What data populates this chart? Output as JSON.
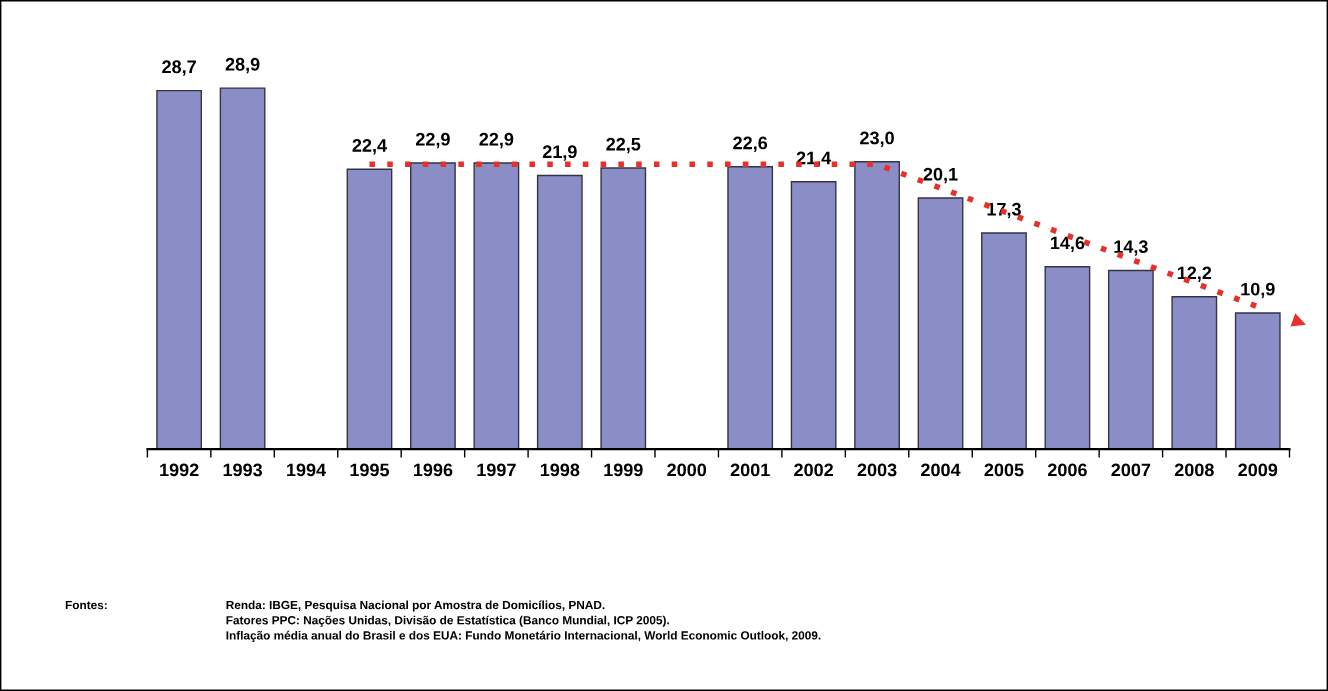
{
  "chart_data": {
    "type": "bar",
    "categories": [
      "1992",
      "1993",
      "1994",
      "1995",
      "1996",
      "1997",
      "1998",
      "1999",
      "2000",
      "2001",
      "2002",
      "2003",
      "2004",
      "2005",
      "2006",
      "2007",
      "2008",
      "2009"
    ],
    "series": [
      {
        "color": "#8b8ec6",
        "values": [
          28.7,
          28.9,
          null,
          22.4,
          22.9,
          22.9,
          21.9,
          22.5,
          null,
          22.6,
          21.4,
          23.0,
          20.1,
          17.3,
          14.6,
          14.3,
          12.2,
          10.9
        ],
        "value_labels": [
          "28,7",
          "28,9",
          null,
          "22,4",
          "22,9",
          "22,9",
          "21,9",
          "22,5",
          null,
          "22,6",
          "21,4",
          "23,0",
          "20,1",
          "17,3",
          "14,6",
          "14,3",
          "12,2",
          "10,9"
        ]
      },
      {
        "type": "line",
        "color": "#e8302a",
        "line_style": "dotted",
        "values": [
          null,
          null,
          null,
          22.8,
          22.8,
          22.8,
          22.8,
          22.8,
          22.8,
          22.8,
          22.8,
          22.8,
          20.9,
          19.0,
          17.1,
          15.2,
          13.3,
          11.4
        ]
      }
    ],
    "annotations": [
      "Fontes:",
      "Renda: IBGE, Pesquisa Nacional por Amostra de Domicílios, PNAD.",
      "Fatores PPC: Nações Unidas, Divisão de Estatística (Banco Mundial, ICP 2005).",
      "Inflação média anual do Brasil e dos EUA: Fundo Monetário Internacional, World Economic Outlook, 2009."
    ],
    "grid": false,
    "legend": false,
    "tick_labels": "x"
  }
}
